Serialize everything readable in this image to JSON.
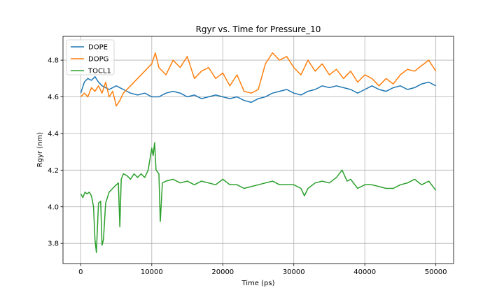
{
  "chart_data": {
    "type": "line",
    "title": "Rgyr vs. Time for Pressure_10",
    "xlabel": "Time (ps)",
    "ylabel": "Rgyr (nm)",
    "xlim": [
      -2500,
      52500
    ],
    "ylim": [
      3.69,
      4.93
    ],
    "xticks": [
      0,
      10000,
      20000,
      30000,
      40000,
      50000
    ],
    "xtick_labels": [
      "0",
      "10000",
      "20000",
      "30000",
      "40000",
      "50000"
    ],
    "yticks": [
      3.8,
      4.0,
      4.2,
      4.4,
      4.6,
      4.8
    ],
    "ytick_labels": [
      "3.8",
      "4.0",
      "4.2",
      "4.4",
      "4.6",
      "4.8"
    ],
    "grid": true,
    "legend_position": "top-left",
    "series": [
      {
        "name": "DOPE",
        "color": "#1f77b4",
        "x": [
          0,
          500,
          1000,
          1500,
          2000,
          2500,
          3000,
          3500,
          4000,
          5000,
          6000,
          7000,
          8000,
          9000,
          10000,
          11000,
          12000,
          13000,
          14000,
          15000,
          16000,
          17000,
          18000,
          19000,
          20000,
          21000,
          22000,
          23000,
          24000,
          25000,
          26000,
          27000,
          28000,
          29000,
          30000,
          31000,
          32000,
          33000,
          34000,
          35000,
          36000,
          37000,
          38000,
          39000,
          40000,
          41000,
          42000,
          43000,
          44000,
          45000,
          46000,
          47000,
          48000,
          49000,
          50000
        ],
        "y": [
          4.62,
          4.68,
          4.7,
          4.69,
          4.71,
          4.68,
          4.66,
          4.65,
          4.64,
          4.66,
          4.64,
          4.62,
          4.61,
          4.62,
          4.6,
          4.6,
          4.62,
          4.63,
          4.62,
          4.6,
          4.61,
          4.59,
          4.6,
          4.61,
          4.6,
          4.59,
          4.6,
          4.58,
          4.57,
          4.59,
          4.6,
          4.62,
          4.63,
          4.64,
          4.62,
          4.61,
          4.63,
          4.64,
          4.66,
          4.65,
          4.66,
          4.65,
          4.64,
          4.62,
          4.64,
          4.66,
          4.64,
          4.63,
          4.65,
          4.66,
          4.64,
          4.65,
          4.67,
          4.68,
          4.66
        ]
      },
      {
        "name": "DOPG",
        "color": "#ff7f0e",
        "x": [
          0,
          500,
          1000,
          1500,
          2000,
          2500,
          3000,
          3500,
          4000,
          4500,
          5000,
          5500,
          6000,
          7000,
          8000,
          9000,
          10000,
          10500,
          11000,
          12000,
          13000,
          14000,
          15000,
          16000,
          17000,
          18000,
          19000,
          20000,
          21000,
          22000,
          23000,
          24000,
          25000,
          26000,
          27000,
          28000,
          29000,
          30000,
          31000,
          32000,
          33000,
          34000,
          35000,
          36000,
          37000,
          38000,
          39000,
          40000,
          41000,
          42000,
          43000,
          44000,
          45000,
          46000,
          47000,
          48000,
          49000,
          50000
        ],
        "y": [
          4.6,
          4.62,
          4.6,
          4.65,
          4.63,
          4.66,
          4.62,
          4.68,
          4.6,
          4.63,
          4.55,
          4.58,
          4.62,
          4.66,
          4.7,
          4.74,
          4.78,
          4.84,
          4.76,
          4.72,
          4.8,
          4.76,
          4.82,
          4.7,
          4.74,
          4.76,
          4.7,
          4.73,
          4.66,
          4.72,
          4.63,
          4.62,
          4.64,
          4.78,
          4.84,
          4.8,
          4.82,
          4.76,
          4.72,
          4.8,
          4.74,
          4.78,
          4.72,
          4.75,
          4.7,
          4.74,
          4.68,
          4.72,
          4.7,
          4.66,
          4.7,
          4.67,
          4.72,
          4.75,
          4.74,
          4.77,
          4.8,
          4.74
        ]
      },
      {
        "name": "TOCL1",
        "color": "#2ca02c",
        "x": [
          0,
          300,
          600,
          900,
          1200,
          1500,
          1800,
          2000,
          2200,
          2500,
          2800,
          3000,
          3200,
          3500,
          4000,
          4500,
          5000,
          5300,
          5500,
          5700,
          6000,
          6500,
          7000,
          7500,
          8000,
          8500,
          9000,
          9500,
          10000,
          10200,
          10400,
          10600,
          11000,
          11200,
          11500,
          12000,
          13000,
          14000,
          15000,
          16000,
          17000,
          18000,
          19000,
          20000,
          21000,
          22000,
          23000,
          24000,
          25000,
          26000,
          27000,
          28000,
          29000,
          30000,
          31000,
          31500,
          32000,
          33000,
          34000,
          35000,
          36000,
          36800,
          37500,
          38000,
          39000,
          40000,
          41000,
          42000,
          43000,
          44000,
          45000,
          46000,
          47000,
          48000,
          49000,
          50000
        ],
        "y": [
          4.07,
          4.05,
          4.08,
          4.07,
          4.08,
          4.06,
          4.0,
          3.82,
          3.75,
          4.02,
          4.03,
          3.79,
          3.82,
          4.02,
          4.08,
          4.1,
          4.12,
          4.13,
          3.89,
          4.15,
          4.18,
          4.17,
          4.15,
          4.18,
          4.16,
          4.18,
          4.16,
          4.2,
          4.32,
          4.28,
          4.35,
          4.2,
          4.18,
          3.92,
          4.13,
          4.14,
          4.15,
          4.13,
          4.14,
          4.12,
          4.14,
          4.13,
          4.12,
          4.15,
          4.12,
          4.12,
          4.1,
          4.11,
          4.12,
          4.13,
          4.14,
          4.12,
          4.12,
          4.12,
          4.1,
          4.06,
          4.1,
          4.13,
          4.14,
          4.13,
          4.16,
          4.2,
          4.14,
          4.15,
          4.1,
          4.12,
          4.12,
          4.11,
          4.1,
          4.1,
          4.12,
          4.13,
          4.15,
          4.12,
          4.14,
          4.09
        ]
      }
    ]
  }
}
